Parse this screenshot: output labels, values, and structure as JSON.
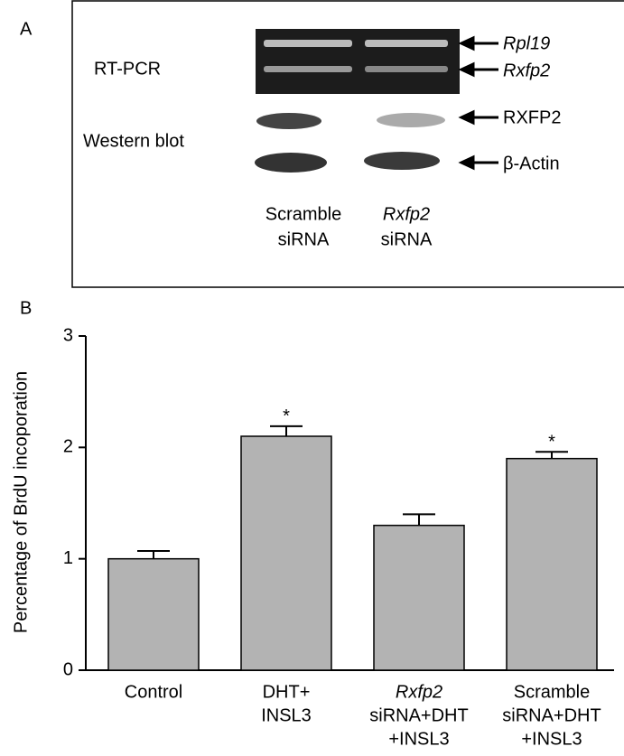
{
  "panel_a": {
    "label": "A",
    "row_labels": [
      "RT-PCR",
      "Western blot"
    ],
    "band_labels": [
      "Rpl19",
      "Rxfp2",
      "RXFP2",
      "β-Actin"
    ],
    "lanes": [
      [
        "Scramble",
        "siRNA"
      ],
      [
        "Rxfp2",
        "siRNA"
      ]
    ]
  },
  "chart_data": {
    "type": "bar",
    "panel_label": "B",
    "ylabel": "Percentage of BrdU incoporation",
    "categories": [
      [
        "Control"
      ],
      [
        "DHT+",
        "INSL3"
      ],
      [
        "Rxfp2",
        "siRNA+DHT",
        "+INSL3"
      ],
      [
        "Scramble",
        "siRNA+DHT",
        "+INSL3"
      ]
    ],
    "values": [
      1.0,
      2.1,
      1.3,
      1.9
    ],
    "errors": [
      0.07,
      0.09,
      0.1,
      0.06
    ],
    "color": "#b3b3b3",
    "annotations": [
      {
        "category": 1,
        "text": "*"
      },
      {
        "category": 3,
        "text": "*"
      }
    ],
    "ylim": [
      0,
      3
    ],
    "yticks": [
      0,
      1,
      2,
      3
    ]
  }
}
